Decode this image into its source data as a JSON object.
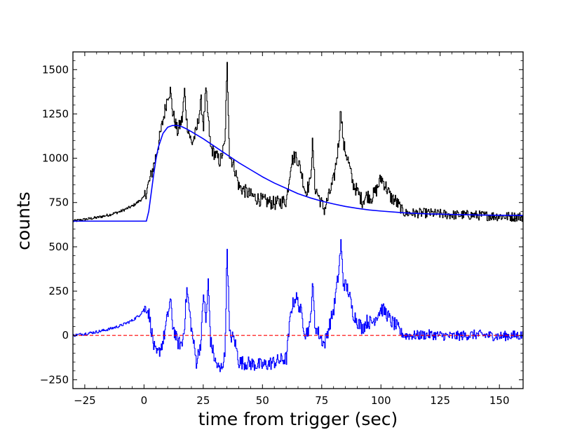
{
  "chart_data": {
    "type": "line",
    "xlabel": "time from trigger (sec)",
    "ylabel": "counts",
    "xlim": [
      -30,
      160
    ],
    "ylim": [
      -300,
      1600
    ],
    "x_ticks": [
      -25,
      0,
      25,
      50,
      75,
      100,
      125,
      150
    ],
    "y_ticks": [
      -250,
      0,
      250,
      500,
      750,
      1000,
      1250,
      1500
    ],
    "series": [
      {
        "role": "light curve (black)",
        "color": "#000000",
        "style": "step",
        "x": [
          -30,
          -25,
          -20,
          -15,
          -10,
          -5,
          -2,
          0,
          2,
          4,
          6,
          8,
          10,
          11,
          12,
          14,
          16,
          17,
          18,
          20,
          22,
          24,
          25,
          26,
          27,
          28,
          30,
          32,
          34,
          35,
          36,
          38,
          40,
          45,
          50,
          55,
          60,
          62,
          64,
          66,
          68,
          70,
          71,
          72,
          74,
          76,
          78,
          80,
          82,
          83,
          84,
          86,
          88,
          90,
          92,
          94,
          96,
          98,
          100,
          102,
          104,
          106,
          108,
          110,
          115,
          120,
          125,
          130,
          135,
          140,
          145,
          150,
          155,
          160
        ],
        "y": [
          645,
          655,
          665,
          680,
          700,
          730,
          760,
          780,
          860,
          960,
          1080,
          1220,
          1360,
          1380,
          1260,
          1150,
          1220,
          1380,
          1200,
          1080,
          1150,
          1320,
          1180,
          1380,
          1220,
          1060,
          1020,
          980,
          1080,
          1520,
          1020,
          950,
          840,
          790,
          760,
          745,
          760,
          980,
          1020,
          940,
          810,
          860,
          1080,
          840,
          770,
          710,
          790,
          880,
          1080,
          1290,
          1080,
          990,
          860,
          810,
          760,
          790,
          780,
          820,
          890,
          840,
          780,
          760,
          720,
          690,
          690,
          690,
          685,
          680,
          680,
          678,
          675,
          673,
          670,
          670
        ]
      },
      {
        "role": "smooth fit (blue)",
        "color": "#0000ff",
        "style": "line",
        "x": [
          -30,
          -20,
          -10,
          0,
          1,
          2,
          3,
          4,
          5,
          6,
          8,
          10,
          12,
          14,
          16,
          18,
          20,
          25,
          30,
          35,
          40,
          45,
          50,
          55,
          60,
          65,
          70,
          75,
          80,
          85,
          90,
          95,
          100,
          110,
          120,
          130,
          140,
          150,
          160
        ],
        "y": [
          645,
          645,
          645,
          645,
          645,
          700,
          800,
          900,
          990,
          1060,
          1140,
          1175,
          1185,
          1185,
          1178,
          1165,
          1150,
          1110,
          1065,
          1020,
          975,
          935,
          895,
          860,
          830,
          800,
          777,
          758,
          742,
          728,
          717,
          708,
          702,
          692,
          686,
          683,
          680,
          678,
          677
        ]
      },
      {
        "role": "residuals (blue)",
        "color": "#0000ff",
        "style": "step",
        "x": [
          -30,
          -25,
          -20,
          -15,
          -10,
          -5,
          -2,
          0,
          1,
          2,
          3,
          4,
          5,
          6,
          8,
          10,
          11,
          12,
          14,
          16,
          17,
          18,
          20,
          22,
          24,
          25,
          26,
          27,
          28,
          30,
          32,
          34,
          35,
          36,
          38,
          40,
          45,
          50,
          55,
          60,
          62,
          64,
          66,
          68,
          70,
          71,
          72,
          74,
          76,
          78,
          80,
          82,
          83,
          84,
          86,
          88,
          90,
          92,
          94,
          96,
          98,
          100,
          102,
          104,
          106,
          108,
          110,
          115,
          120,
          125,
          130,
          135,
          140,
          145,
          150,
          155,
          160
        ],
        "y": [
          0,
          10,
          20,
          35,
          55,
          85,
          115,
          150,
          160,
          120,
          30,
          -60,
          -110,
          -100,
          -30,
          120,
          200,
          60,
          -40,
          -50,
          70,
          260,
          30,
          -150,
          -30,
          250,
          70,
          300,
          -30,
          -150,
          -200,
          -120,
          500,
          0,
          -20,
          -150,
          -160,
          -170,
          -150,
          -130,
          150,
          220,
          140,
          10,
          50,
          300,
          60,
          0,
          -50,
          50,
          150,
          350,
          520,
          300,
          260,
          130,
          80,
          40,
          80,
          70,
          110,
          150,
          130,
          80,
          60,
          20,
          0,
          0,
          5,
          0,
          -5,
          0,
          5,
          0,
          -5,
          0,
          0
        ]
      },
      {
        "role": "zero reference (red dashed)",
        "color": "#ff0000",
        "style": "dashed",
        "x": [
          -30,
          160
        ],
        "y": [
          0,
          0
        ]
      }
    ]
  }
}
